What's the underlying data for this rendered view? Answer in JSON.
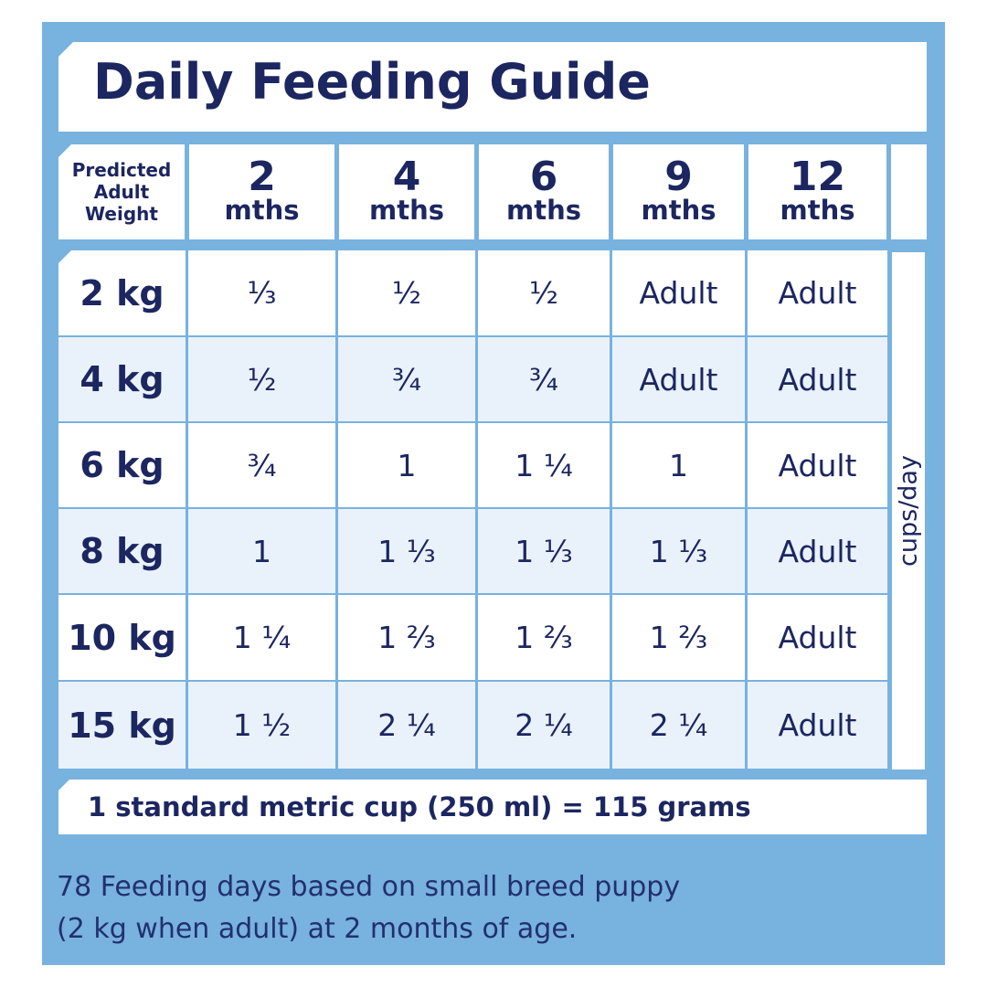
{
  "title": "Daily Feeding Guide",
  "header": {
    "weight_label": [
      "Predicted",
      "Adult",
      "Weight"
    ],
    "columns": [
      {
        "num": "2",
        "unit": "mths"
      },
      {
        "num": "4",
        "unit": "mths"
      },
      {
        "num": "6",
        "unit": "mths"
      },
      {
        "num": "9",
        "unit": "mths"
      },
      {
        "num": "12",
        "unit": "mths"
      }
    ]
  },
  "rows": [
    {
      "weight": "2 kg",
      "values": [
        "⅓",
        "½",
        "½",
        "Adult",
        "Adult"
      ]
    },
    {
      "weight": "4 kg",
      "values": [
        "½",
        "¾",
        "¾",
        "Adult",
        "Adult"
      ]
    },
    {
      "weight": "6 kg",
      "values": [
        "¾",
        "1",
        "1 ¼",
        "1",
        "Adult"
      ]
    },
    {
      "weight": "8 kg",
      "values": [
        "1",
        "1 ⅓",
        "1 ⅓",
        "1 ⅓",
        "Adult"
      ]
    },
    {
      "weight": "10 kg",
      "values": [
        "1 ¼",
        "1 ⅔",
        "1 ⅔",
        "1 ⅔",
        "Adult"
      ]
    },
    {
      "weight": "15 kg",
      "values": [
        "1 ½",
        "2 ¼",
        "2 ¼",
        "2 ¼",
        "Adult"
      ]
    }
  ],
  "unit_label": "cups/day",
  "footer": "1 standard metric cup (250 ml) = 115 grams",
  "note": [
    "78 Feeding days based on small breed puppy",
    "(2 kg when adult) at 2 months of age."
  ],
  "colors": {
    "panel": "#78b2df",
    "text": "#1c2660",
    "row_alt": "#e9f2fa"
  }
}
